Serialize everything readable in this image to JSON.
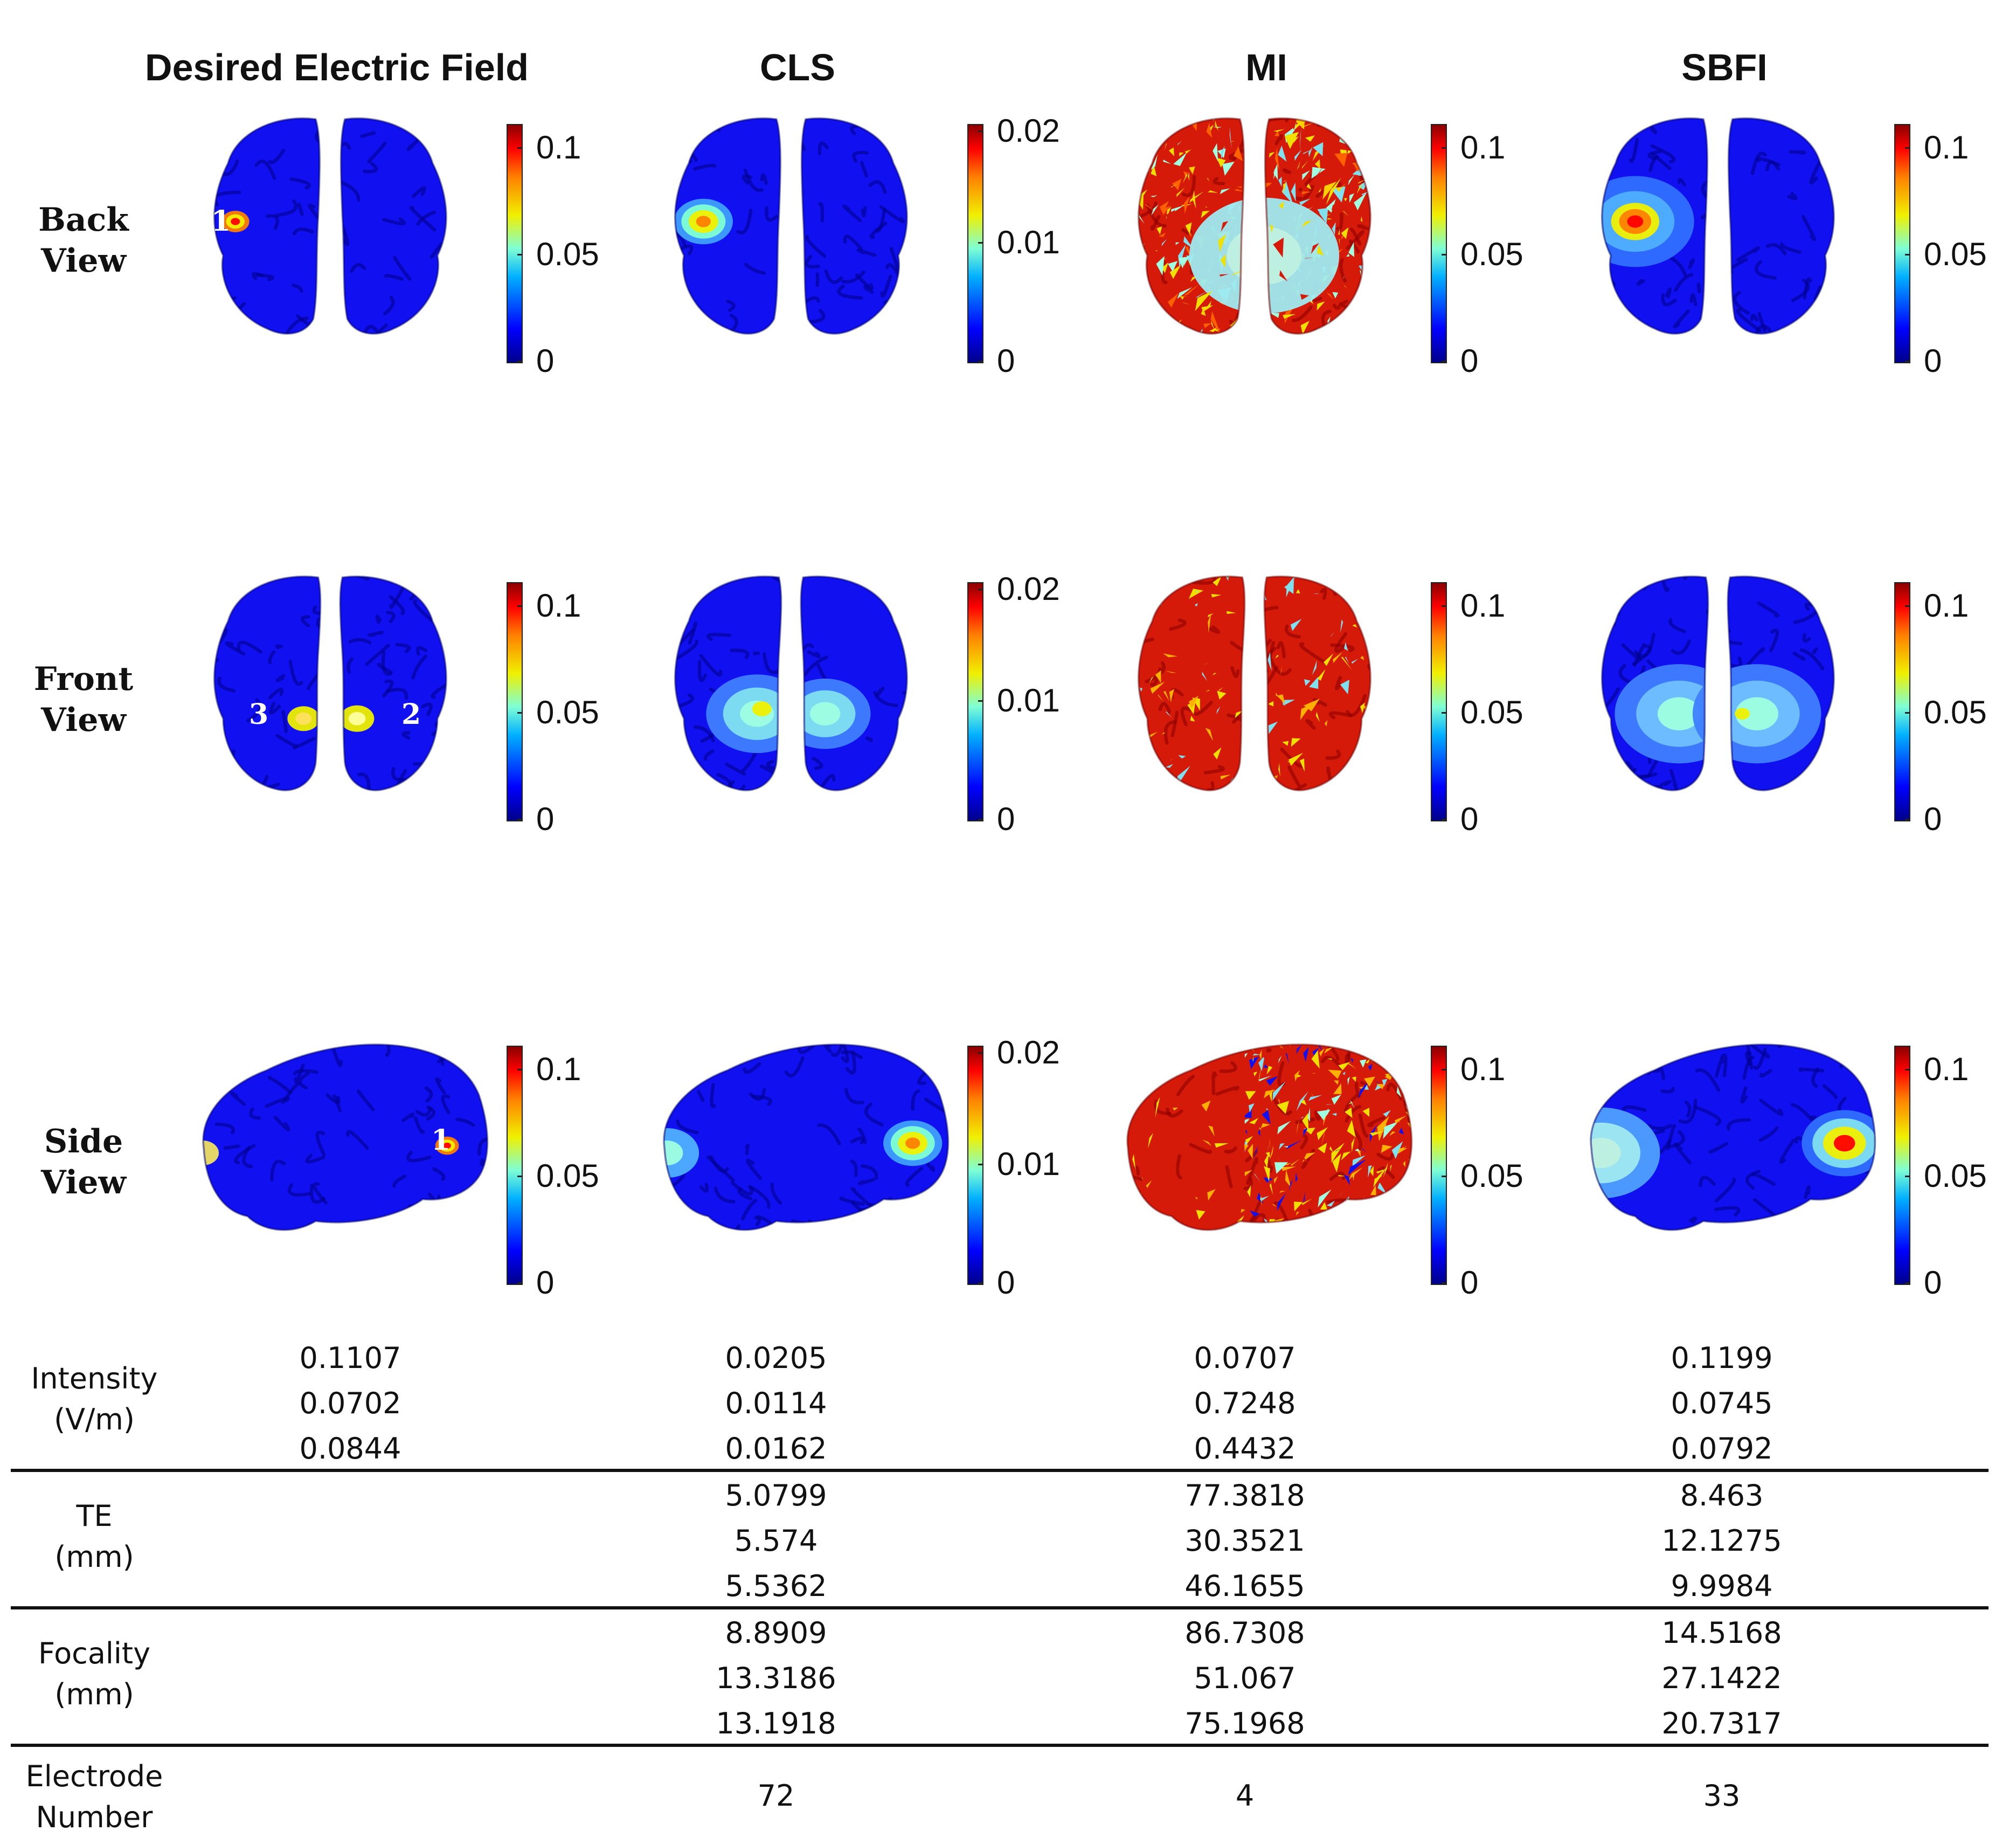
{
  "columns": [
    "Desired Electric Field",
    "CLS",
    "MI",
    "SBFI"
  ],
  "rows": [
    {
      "line1": "Back",
      "line2": "View"
    },
    {
      "line1": "Front",
      "line2": "View"
    },
    {
      "line1": "Side",
      "line2": "View"
    }
  ],
  "colorbar_ticks": {
    "desired": [
      "0.1",
      "0.05",
      "0"
    ],
    "cls": [
      "0.02",
      "0.01",
      "0"
    ],
    "mi": [
      "0.1",
      "0.05",
      "0"
    ],
    "sbfi": [
      "0.1",
      "0.05",
      "0"
    ]
  },
  "markers": {
    "back": "1",
    "front_left": "3",
    "front_right": "2",
    "side": "1"
  },
  "colors": {
    "low": "#0000ff",
    "mid": "#7fffd4",
    "yellow": "#f0f000",
    "high": "#ff0000"
  },
  "table": {
    "intensity": {
      "label1": "Intensity",
      "label2": "(V/m)",
      "desired": [
        "0.1107",
        "0.0702",
        "0.0844"
      ],
      "cls": [
        "0.0205",
        "0.0114",
        "0.0162"
      ],
      "mi": [
        "0.0707",
        "0.7248",
        "0.4432"
      ],
      "sbfi": [
        "0.1199",
        "0.0745",
        "0.0792"
      ]
    },
    "te": {
      "label1": "TE",
      "label2": "(mm)",
      "cls": [
        "5.0799",
        "5.574",
        "5.5362"
      ],
      "mi": [
        "77.3818",
        "30.3521",
        "46.1655"
      ],
      "sbfi": [
        "8.463",
        "12.1275",
        "9.9984"
      ]
    },
    "focality": {
      "label1": "Focality",
      "label2": "(mm)",
      "cls": [
        "8.8909",
        "13.3186",
        "13.1918"
      ],
      "mi": [
        "86.7308",
        "51.067",
        "75.1968"
      ],
      "sbfi": [
        "14.5168",
        "27.1422",
        "20.7317"
      ]
    },
    "electrode": {
      "label1": "Electrode",
      "label2": "Number",
      "cls": "72",
      "mi": "4",
      "sbfi": "33"
    }
  }
}
